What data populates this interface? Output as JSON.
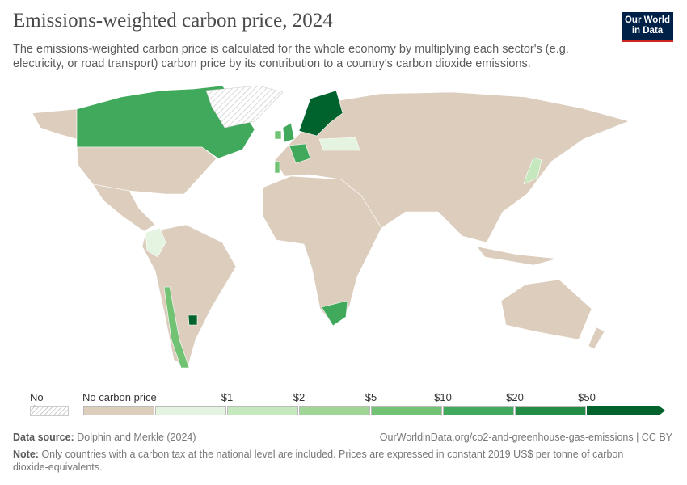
{
  "header": {
    "title": "Emissions-weighted carbon price, 2024",
    "subtitle": "The emissions-weighted carbon price is calculated for the whole economy by multiplying each sector's (e.g. electricity, or road transport) carbon price by its contribution to a country's carbon dioxide emissions.",
    "logo": "Our World in Data"
  },
  "colors": {
    "no_carbon_price": "#dccdbd",
    "bins": [
      "#e5f4e0",
      "#c6e8bf",
      "#9fd695",
      "#72c274",
      "#40a95b",
      "#238c45",
      "#00632e"
    ],
    "logo_bg": "#002147",
    "logo_accent": "#ce261e"
  },
  "legend": {
    "no_data": "No data",
    "no_carbon_price": "No carbon price",
    "ticks": [
      "$1",
      "$2",
      "$5",
      "$10",
      "$20",
      "$50"
    ]
  },
  "footer": {
    "source_label": "Data source:",
    "source": "Dolphin and Merkle (2024)",
    "url": "OurWorldinData.org/co2-and-greenhouse-gas-emissions | CC BY",
    "note_label": "Note:",
    "note": "Only countries with a carbon tax at the national level are included. Prices are expressed in constant 2019 US$ per tonne of carbon dioxide-equivalents."
  }
}
